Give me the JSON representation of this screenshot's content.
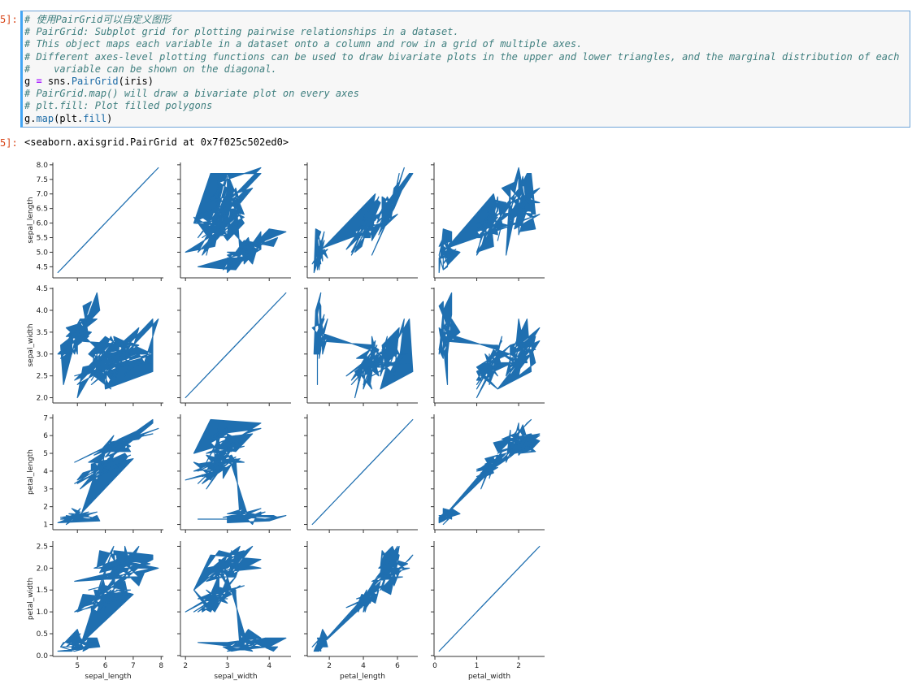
{
  "cell": {
    "in_prompt": "5]:",
    "out_prompt": "5]:",
    "code_lines": [
      [
        {
          "t": "# 使用PairGrid可以自定义图形",
          "c": "cm"
        }
      ],
      [
        {
          "t": "# PairGrid: Subplot grid for plotting pairwise relationships in a dataset.",
          "c": "cm"
        }
      ],
      [
        {
          "t": "# This object maps each variable in a dataset onto a column and row in a grid of multiple axes.",
          "c": "cm"
        }
      ],
      [
        {
          "t": "# Different axes-level plotting functions can be used to draw bivariate plots in the upper and lower triangles, and the marginal distribution of each",
          "c": "cm"
        }
      ],
      [
        {
          "t": "#    variable can be shown on the diagonal.",
          "c": "cm"
        }
      ],
      [
        {
          "t": "g ",
          "c": "va"
        },
        {
          "t": "=",
          "c": "op"
        },
        {
          "t": " sns.",
          "c": "va"
        },
        {
          "t": "PairGrid",
          "c": "fn"
        },
        {
          "t": "(iris)",
          "c": "va"
        }
      ],
      [
        {
          "t": "# PairGrid.map() will draw a bivariate plot on every axes",
          "c": "cm"
        }
      ],
      [
        {
          "t": "# plt.fill: Plot filled polygons",
          "c": "cm"
        }
      ],
      [
        {
          "t": "g.",
          "c": "va"
        },
        {
          "t": "map",
          "c": "fn"
        },
        {
          "t": "(plt.",
          "c": "va"
        },
        {
          "t": "fill",
          "c": "fn"
        },
        {
          "t": ")",
          "c": "va"
        }
      ]
    ],
    "output_repr": "<seaborn.axisgrid.PairGrid at 0x7f025c502ed0>"
  },
  "chart_data": {
    "type": "pairgrid-fill",
    "variables": [
      "sepal_length",
      "sepal_width",
      "petal_length",
      "petal_width"
    ],
    "ranges": {
      "sepal_length": [
        4.3,
        7.9
      ],
      "sepal_width": [
        2.0,
        4.4
      ],
      "petal_length": [
        1.0,
        6.9
      ],
      "petal_width": [
        0.1,
        2.5
      ]
    },
    "xticks": {
      "sepal_length": [
        5,
        6,
        7,
        8
      ],
      "sepal_width": [
        2,
        3,
        4
      ],
      "petal_length": [
        2,
        4,
        6
      ],
      "petal_width": [
        0,
        1,
        2
      ]
    },
    "yticks": {
      "sepal_length": [
        "4.5",
        "5.0",
        "5.5",
        "6.0",
        "6.5",
        "7.0",
        "7.5",
        "8.0"
      ],
      "sepal_width": [
        "2.0",
        "2.5",
        "3.0",
        "3.5",
        "4.0",
        "4.5"
      ],
      "petal_length": [
        "1",
        "2",
        "3",
        "4",
        "5",
        "6",
        "7"
      ],
      "petal_width": [
        "0.0",
        "0.5",
        "1.0",
        "1.5",
        "2.0",
        "2.5"
      ]
    },
    "fill_color": "#1f6fb0",
    "spine_color": "#333333",
    "grid": false,
    "iris": {
      "sepal_length": [
        5.1,
        4.9,
        4.7,
        4.6,
        5.0,
        5.4,
        4.6,
        5.0,
        4.4,
        4.9,
        5.4,
        4.8,
        4.8,
        4.3,
        5.8,
        5.7,
        5.4,
        5.1,
        5.7,
        5.1,
        5.4,
        5.1,
        4.6,
        5.1,
        4.8,
        5.0,
        5.0,
        5.2,
        5.2,
        4.7,
        4.8,
        5.4,
        5.2,
        5.5,
        4.9,
        5.0,
        5.5,
        4.9,
        4.4,
        5.1,
        5.0,
        4.5,
        4.4,
        5.0,
        5.1,
        4.8,
        5.1,
        4.6,
        5.3,
        5.0,
        7.0,
        6.4,
        6.9,
        5.5,
        6.5,
        5.7,
        6.3,
        4.9,
        6.6,
        5.2,
        5.0,
        5.9,
        6.0,
        6.1,
        5.6,
        6.7,
        5.6,
        5.8,
        6.2,
        5.6,
        5.9,
        6.1,
        6.3,
        6.1,
        6.4,
        6.6,
        6.8,
        6.7,
        6.0,
        5.7,
        5.5,
        5.5,
        5.8,
        6.0,
        5.4,
        6.0,
        6.7,
        6.3,
        5.6,
        5.5,
        5.5,
        6.1,
        5.8,
        5.0,
        5.6,
        5.7,
        5.7,
        6.2,
        5.1,
        5.7,
        6.3,
        5.8,
        7.1,
        6.3,
        6.5,
        7.6,
        4.9,
        7.3,
        6.7,
        7.2,
        6.5,
        6.4,
        6.8,
        5.7,
        5.8,
        6.4,
        6.5,
        7.7,
        7.7,
        6.0,
        6.9,
        5.6,
        7.7,
        6.3,
        6.7,
        7.2,
        6.2,
        6.1,
        6.4,
        7.2,
        7.4,
        7.9,
        6.4,
        6.3,
        6.1,
        7.7,
        6.3,
        6.4,
        6.0,
        6.9,
        6.7,
        6.9,
        5.8,
        6.8,
        6.7,
        6.7,
        6.3,
        6.5,
        6.2,
        5.9
      ],
      "sepal_width": [
        3.5,
        3.0,
        3.2,
        3.1,
        3.6,
        3.9,
        3.4,
        3.4,
        2.9,
        3.1,
        3.7,
        3.4,
        3.0,
        3.0,
        4.0,
        4.4,
        3.9,
        3.5,
        3.8,
        3.8,
        3.4,
        3.7,
        3.6,
        3.3,
        3.4,
        3.0,
        3.4,
        3.5,
        3.4,
        3.2,
        3.1,
        3.4,
        4.1,
        4.2,
        3.1,
        3.2,
        3.5,
        3.6,
        3.0,
        3.4,
        3.5,
        2.3,
        3.2,
        3.5,
        3.8,
        3.0,
        3.8,
        3.2,
        3.7,
        3.3,
        3.2,
        3.2,
        3.1,
        2.3,
        2.8,
        2.8,
        3.3,
        2.4,
        2.9,
        2.7,
        2.0,
        3.0,
        2.2,
        2.9,
        2.9,
        3.1,
        3.0,
        2.7,
        2.2,
        2.5,
        3.2,
        2.8,
        2.5,
        2.8,
        2.9,
        3.0,
        2.8,
        3.0,
        2.9,
        2.6,
        2.4,
        2.4,
        2.7,
        2.7,
        3.0,
        3.4,
        3.1,
        2.3,
        3.0,
        2.5,
        2.6,
        3.0,
        2.6,
        2.3,
        2.7,
        3.0,
        2.9,
        2.9,
        2.5,
        2.8,
        3.3,
        2.7,
        3.0,
        2.9,
        3.0,
        3.0,
        2.5,
        2.9,
        2.5,
        3.6,
        3.2,
        2.7,
        3.0,
        2.5,
        2.8,
        3.2,
        3.0,
        3.8,
        2.6,
        2.2,
        3.2,
        2.8,
        2.8,
        2.7,
        3.3,
        3.2,
        2.8,
        3.0,
        2.8,
        3.0,
        2.8,
        3.8,
        2.8,
        2.8,
        2.6,
        3.0,
        3.4,
        3.1,
        3.0,
        3.1,
        3.1,
        3.1,
        2.7,
        3.2,
        3.3,
        3.0,
        2.5,
        3.0,
        3.4,
        3.0
      ],
      "petal_length": [
        1.4,
        1.4,
        1.3,
        1.5,
        1.4,
        1.7,
        1.4,
        1.5,
        1.4,
        1.5,
        1.5,
        1.6,
        1.4,
        1.1,
        1.2,
        1.5,
        1.3,
        1.4,
        1.7,
        1.5,
        1.7,
        1.5,
        1.0,
        1.7,
        1.9,
        1.6,
        1.6,
        1.5,
        1.4,
        1.6,
        1.6,
        1.5,
        1.5,
        1.4,
        1.5,
        1.2,
        1.3,
        1.4,
        1.3,
        1.5,
        1.3,
        1.3,
        1.3,
        1.6,
        1.9,
        1.4,
        1.6,
        1.4,
        1.5,
        1.4,
        4.7,
        4.5,
        4.9,
        4.0,
        4.6,
        4.5,
        4.7,
        3.3,
        4.6,
        3.9,
        3.5,
        4.2,
        4.0,
        4.7,
        3.6,
        4.4,
        4.5,
        4.1,
        4.5,
        3.9,
        4.8,
        4.0,
        4.9,
        4.7,
        4.3,
        4.4,
        4.8,
        5.0,
        4.5,
        3.5,
        3.8,
        3.7,
        3.9,
        5.1,
        4.5,
        4.5,
        4.7,
        4.4,
        4.1,
        4.0,
        4.4,
        4.6,
        4.0,
        3.3,
        4.2,
        4.2,
        4.2,
        4.3,
        3.0,
        4.1,
        6.0,
        5.1,
        5.9,
        5.6,
        5.8,
        6.6,
        4.5,
        6.3,
        5.8,
        6.1,
        5.1,
        5.3,
        5.5,
        5.0,
        5.1,
        5.3,
        5.5,
        6.7,
        6.9,
        5.0,
        5.7,
        4.9,
        6.7,
        4.9,
        5.7,
        6.0,
        4.8,
        4.9,
        5.6,
        5.8,
        6.1,
        6.4,
        5.6,
        5.1,
        5.6,
        6.1,
        5.6,
        5.5,
        4.8,
        5.4,
        5.6,
        5.1,
        5.1,
        5.9,
        5.7,
        5.2,
        5.0,
        5.2,
        5.4,
        5.1
      ],
      "petal_width": [
        0.2,
        0.2,
        0.2,
        0.2,
        0.2,
        0.4,
        0.3,
        0.2,
        0.2,
        0.1,
        0.2,
        0.2,
        0.1,
        0.1,
        0.2,
        0.4,
        0.4,
        0.3,
        0.3,
        0.3,
        0.2,
        0.4,
        0.2,
        0.5,
        0.2,
        0.2,
        0.4,
        0.2,
        0.2,
        0.2,
        0.2,
        0.4,
        0.1,
        0.2,
        0.2,
        0.2,
        0.2,
        0.1,
        0.2,
        0.2,
        0.3,
        0.3,
        0.2,
        0.6,
        0.4,
        0.3,
        0.2,
        0.2,
        0.2,
        0.2,
        1.4,
        1.5,
        1.5,
        1.3,
        1.5,
        1.3,
        1.6,
        1.0,
        1.3,
        1.4,
        1.0,
        1.5,
        1.0,
        1.4,
        1.3,
        1.4,
        1.5,
        1.0,
        1.5,
        1.1,
        1.8,
        1.3,
        1.5,
        1.2,
        1.3,
        1.4,
        1.4,
        1.7,
        1.5,
        1.0,
        1.1,
        1.0,
        1.2,
        1.6,
        1.5,
        1.6,
        1.5,
        1.3,
        1.3,
        1.3,
        1.2,
        1.4,
        1.2,
        1.0,
        1.3,
        1.2,
        1.3,
        1.3,
        1.1,
        1.3,
        2.5,
        1.9,
        2.1,
        1.8,
        2.2,
        2.1,
        1.7,
        1.8,
        1.8,
        2.5,
        2.0,
        1.9,
        2.1,
        2.0,
        2.4,
        2.3,
        1.8,
        2.2,
        2.3,
        1.5,
        2.3,
        2.0,
        2.0,
        1.8,
        2.1,
        1.8,
        1.8,
        1.8,
        2.1,
        1.6,
        1.9,
        2.0,
        2.2,
        1.5,
        1.4,
        2.3,
        2.4,
        1.8,
        1.8,
        2.1,
        2.4,
        2.3,
        1.9,
        2.3,
        2.5,
        2.3,
        1.9,
        2.0,
        2.3,
        1.8
      ]
    }
  }
}
